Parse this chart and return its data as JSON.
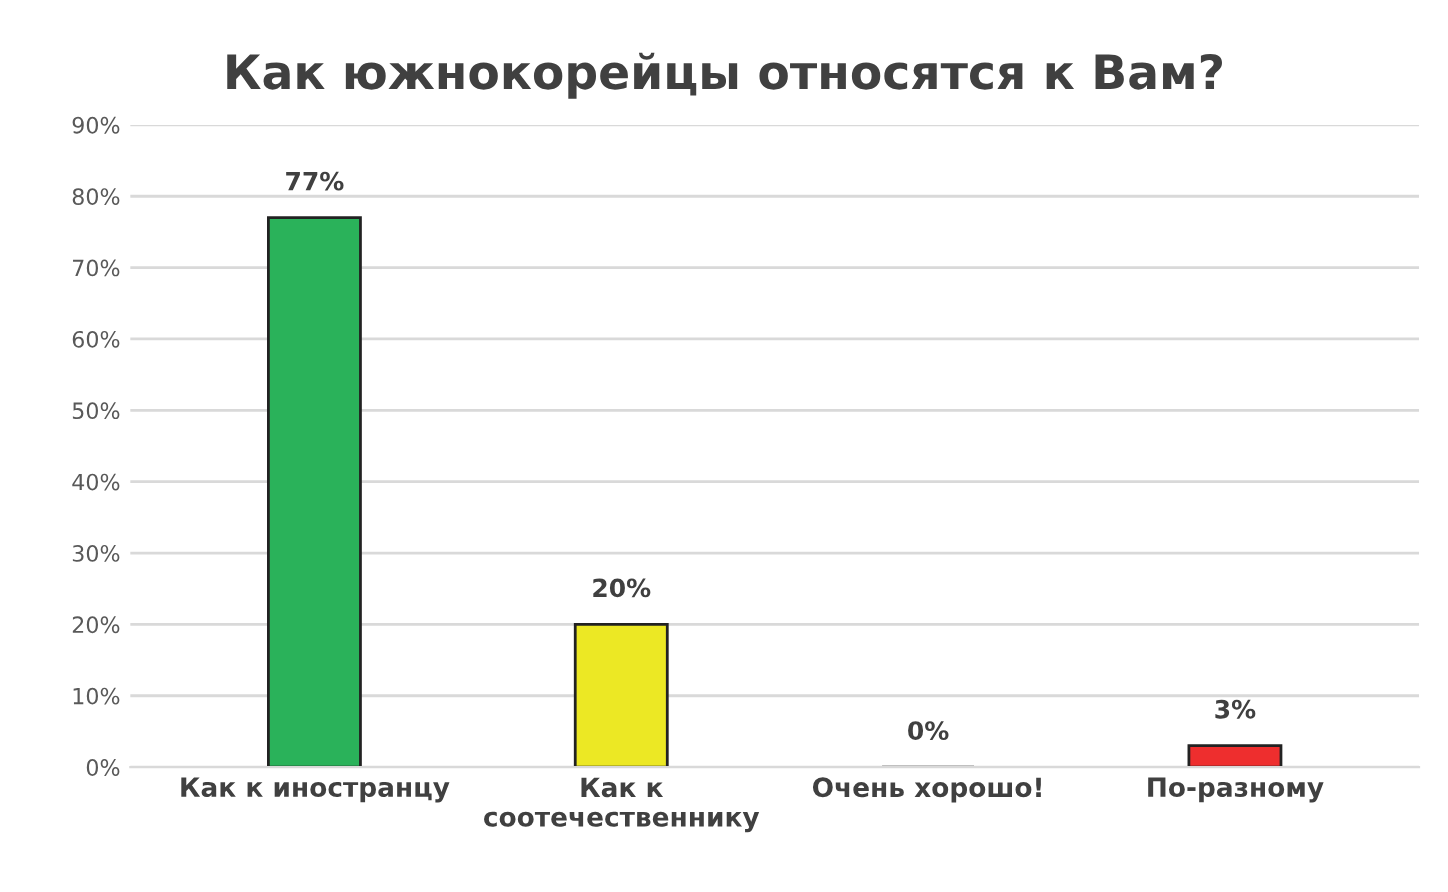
{
  "chart_data": {
    "type": "bar",
    "title": "Как южнокорейцы относятся к Вам?",
    "categories": [
      "Как к иностранцу",
      "Как к\nсоотечественнику",
      "Очень хорошо!",
      "По-разному"
    ],
    "values": [
      77,
      20,
      0,
      3
    ],
    "colors": [
      "#2ab25a",
      "#ece824",
      "#2b2b2b",
      "#ee2e2e"
    ],
    "value_labels": [
      "77%",
      "20%",
      "0%",
      "3%"
    ],
    "ylim": [
      0,
      90
    ],
    "yticks": [
      {
        "value": 0,
        "label": "0%"
      },
      {
        "value": 10,
        "label": "10%"
      },
      {
        "value": 20,
        "label": "20%"
      },
      {
        "value": 30,
        "label": "30%"
      },
      {
        "value": 40,
        "label": "40%"
      },
      {
        "value": 50,
        "label": "50%"
      },
      {
        "value": 60,
        "label": "60%"
      },
      {
        "value": 70,
        "label": "70%"
      },
      {
        "value": 80,
        "label": "80%"
      },
      {
        "value": 90,
        "label": "90%"
      }
    ],
    "grid": "y",
    "legend": false
  }
}
